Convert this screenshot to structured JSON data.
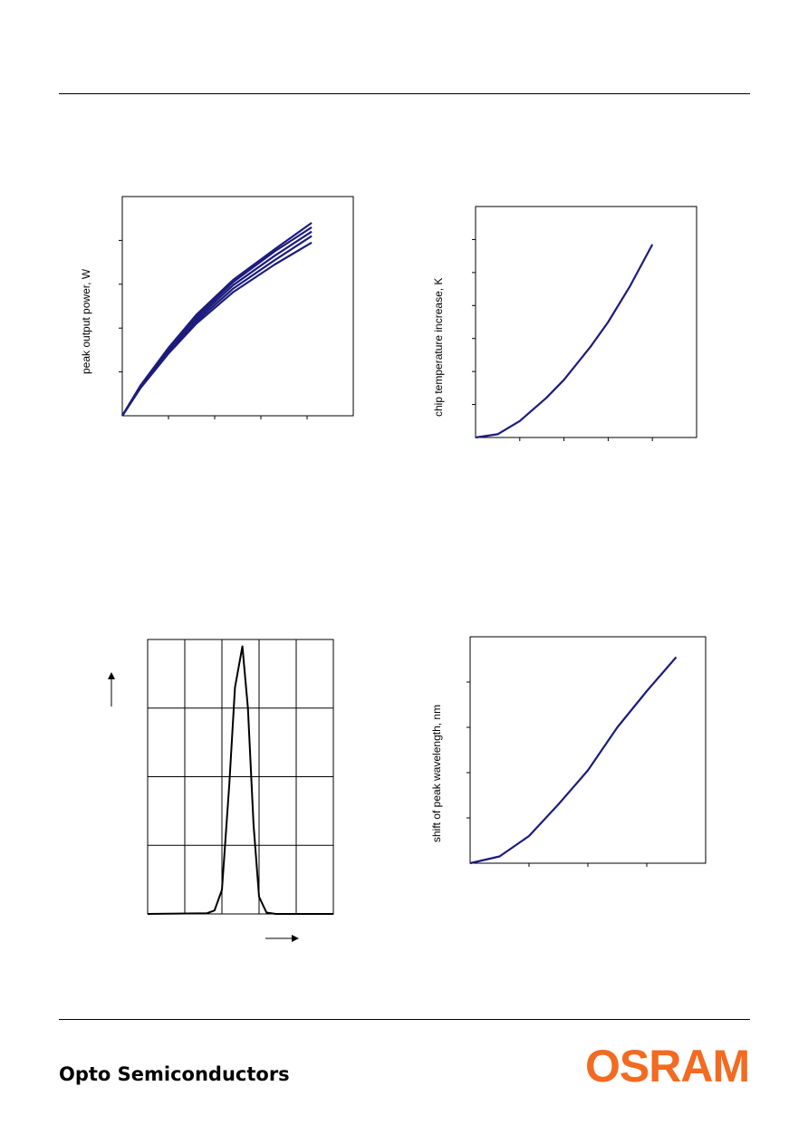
{
  "footer": {
    "company_text": "Opto Semiconductors",
    "logo_text": "OSRAM",
    "logo_color": "#f26b21"
  },
  "chart_data": [
    {
      "id": "power",
      "type": "line",
      "title": "",
      "ylabel": "peak output power, W",
      "xlabel": "",
      "xlim": [
        0,
        5
      ],
      "ylim": [
        0,
        5
      ],
      "grid": false,
      "series_color": "#1c1c7c",
      "series": [
        {
          "x": [
            0.0,
            0.4,
            1.0,
            1.6,
            2.4,
            3.3,
            4.1
          ],
          "y": [
            0.0,
            0.7,
            1.55,
            2.3,
            3.1,
            3.8,
            4.4
          ]
        },
        {
          "x": [
            0.0,
            0.4,
            1.0,
            1.6,
            2.4,
            3.3,
            4.1
          ],
          "y": [
            0.0,
            0.68,
            1.5,
            2.25,
            3.05,
            3.75,
            4.3
          ]
        },
        {
          "x": [
            0.0,
            0.4,
            1.0,
            1.6,
            2.4,
            3.3,
            4.1
          ],
          "y": [
            0.0,
            0.66,
            1.48,
            2.2,
            2.98,
            3.65,
            4.2
          ]
        },
        {
          "x": [
            0.0,
            0.4,
            1.0,
            1.6,
            2.4,
            3.3,
            4.1
          ],
          "y": [
            0.0,
            0.65,
            1.45,
            2.15,
            2.9,
            3.55,
            4.1
          ]
        },
        {
          "x": [
            0.0,
            0.4,
            1.0,
            1.6,
            2.4,
            3.3,
            4.1
          ],
          "y": [
            0.0,
            0.64,
            1.42,
            2.1,
            2.82,
            3.45,
            3.95
          ]
        }
      ]
    },
    {
      "id": "temperature",
      "type": "line",
      "title": "",
      "ylabel": "chip temperature increase, K",
      "xlabel": "",
      "xlim": [
        0,
        5
      ],
      "ylim": [
        0,
        7
      ],
      "grid": false,
      "series_color": "#1c1c7c",
      "series": [
        {
          "x": [
            0.0,
            0.5,
            1.0,
            1.6,
            2.0,
            2.6,
            3.0,
            3.5,
            4.0
          ],
          "y": [
            0.0,
            0.1,
            0.5,
            1.2,
            1.75,
            2.75,
            3.5,
            4.6,
            5.85
          ]
        }
      ]
    },
    {
      "id": "spectrum",
      "type": "line",
      "title": "",
      "ylabel": "",
      "xlabel": "",
      "xlim": [
        0,
        5
      ],
      "ylim": [
        0,
        4
      ],
      "grid": true,
      "series_color": "#000000",
      "series": [
        {
          "x": [
            0.0,
            1.6,
            1.8,
            2.0,
            2.2,
            2.35,
            2.55,
            2.7,
            2.85,
            3.0,
            3.2,
            3.45,
            5.0
          ],
          "y": [
            0.0,
            0.01,
            0.05,
            0.35,
            1.9,
            3.3,
            3.9,
            3.0,
            1.3,
            0.25,
            0.02,
            0.0,
            0.0
          ]
        }
      ]
    },
    {
      "id": "wavelength",
      "type": "line",
      "title": "",
      "ylabel": "shift of peak wavelength, nm",
      "xlabel": "",
      "xlim": [
        0,
        4
      ],
      "ylim": [
        0,
        5
      ],
      "grid": false,
      "series_color": "#1c1c7c",
      "series": [
        {
          "x": [
            0.0,
            0.5,
            1.0,
            1.5,
            2.0,
            2.5,
            3.0,
            3.5
          ],
          "y": [
            0.0,
            0.15,
            0.6,
            1.3,
            2.05,
            3.0,
            3.8,
            4.55
          ]
        }
      ]
    }
  ]
}
